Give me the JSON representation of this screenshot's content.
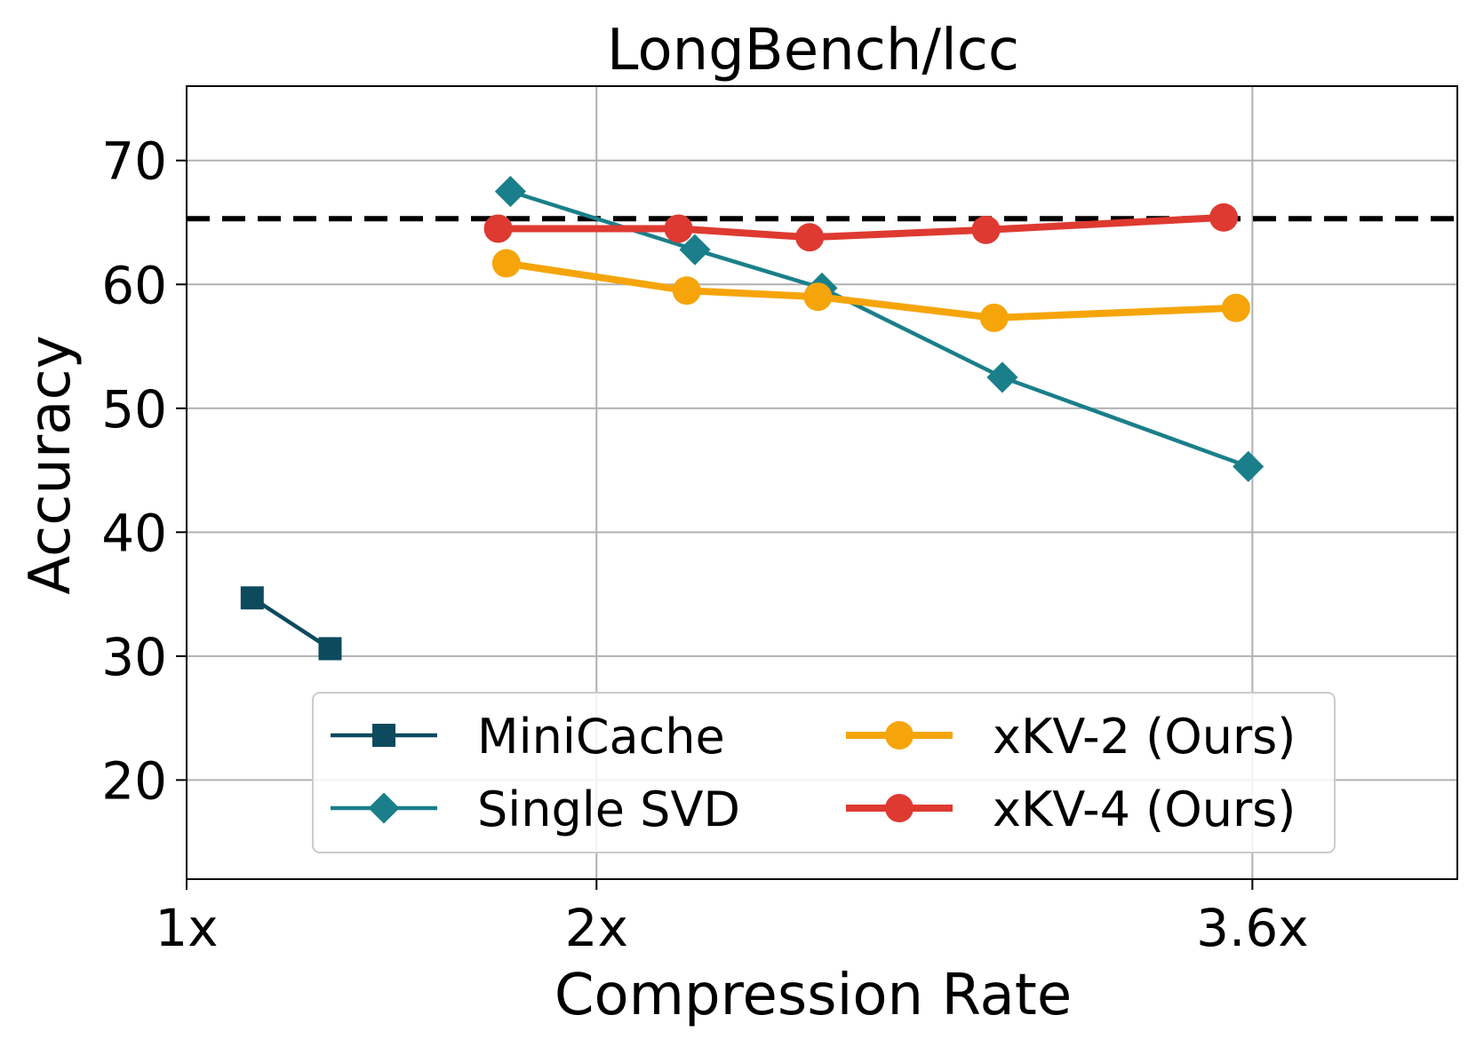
{
  "chart_data": {
    "type": "line",
    "title": "LongBench/lcc",
    "xlabel": "Compression Rate",
    "ylabel": "Accuracy",
    "xlim": [
      1.0,
      4.1
    ],
    "ylim": [
      12,
      76
    ],
    "xticks": [
      {
        "value": 1.0,
        "label": "1x"
      },
      {
        "value": 2.0,
        "label": "2x"
      },
      {
        "value": 3.6,
        "label": "3.6x"
      }
    ],
    "yticks": [
      {
        "value": 20,
        "label": "20"
      },
      {
        "value": 30,
        "label": "30"
      },
      {
        "value": 40,
        "label": "40"
      },
      {
        "value": 50,
        "label": "50"
      },
      {
        "value": 60,
        "label": "60"
      },
      {
        "value": 70,
        "label": "70"
      }
    ],
    "grid": true,
    "baseline": {
      "value": 65.3,
      "style": "dashed",
      "color": "#000000"
    },
    "legend_position": "bottom-center",
    "series": [
      {
        "name": "MiniCache",
        "color": "#0d4a5e",
        "marker": "square",
        "x": [
          1.16,
          1.35
        ],
        "y": [
          34.7,
          30.6
        ]
      },
      {
        "name": "Single SVD",
        "color": "#1a7f8a",
        "marker": "diamond",
        "x": [
          1.79,
          2.24,
          2.55,
          2.99,
          3.59
        ],
        "y": [
          67.5,
          62.8,
          59.7,
          52.5,
          45.3
        ]
      },
      {
        "name": "xKV-2 (Ours)",
        "color": "#f5a50a",
        "marker": "circle",
        "x": [
          1.78,
          2.22,
          2.54,
          2.97,
          3.56
        ],
        "y": [
          61.7,
          59.5,
          59.0,
          57.3,
          58.1
        ]
      },
      {
        "name": "xKV-4 (Ours)",
        "color": "#de3a31",
        "marker": "circle",
        "x": [
          1.76,
          2.2,
          2.52,
          2.95,
          3.53
        ],
        "y": [
          64.5,
          64.5,
          63.8,
          64.4,
          65.4
        ]
      }
    ]
  }
}
